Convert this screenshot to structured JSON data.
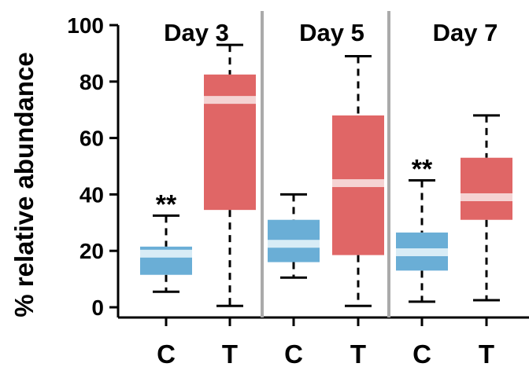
{
  "chart_data": {
    "type": "box",
    "ylabel": "% relative abundance",
    "ylim": [
      0,
      100
    ],
    "yticks": [
      "0",
      "20",
      "40",
      "60",
      "80",
      "100"
    ],
    "panels": [
      {
        "title": "Day 3",
        "boxes": [
          {
            "category": "C",
            "min": 5.5,
            "q1": 11.5,
            "median": 19,
            "q3": 21.5,
            "max": 32.5,
            "color": "#6aaed6",
            "annotation": "**"
          },
          {
            "category": "T",
            "min": 0.5,
            "q1": 34.5,
            "median": 73.5,
            "q3": 82.5,
            "max": 93,
            "color": "#e06666",
            "annotation": ""
          }
        ]
      },
      {
        "title": "Day 5",
        "boxes": [
          {
            "category": "C",
            "min": 10.5,
            "q1": 16,
            "median": 22.5,
            "q3": 31,
            "max": 40,
            "color": "#6aaed6",
            "annotation": ""
          },
          {
            "category": "T",
            "min": 0.5,
            "q1": 18.5,
            "median": 44,
            "q3": 68,
            "max": 89,
            "color": "#e06666",
            "annotation": ""
          }
        ]
      },
      {
        "title": "Day 7",
        "boxes": [
          {
            "category": "C",
            "min": 2,
            "q1": 13,
            "median": 19.5,
            "q3": 26.5,
            "max": 45,
            "color": "#6aaed6",
            "annotation": "**"
          },
          {
            "category": "T",
            "min": 2.5,
            "q1": 31,
            "median": 39,
            "q3": 53,
            "max": 68,
            "color": "#e06666",
            "annotation": ""
          }
        ]
      }
    ],
    "median_color": "#f5d3d3",
    "median_color_blue": "#d8ecf6",
    "divider_color": "#aaaaaa",
    "grid": false
  }
}
